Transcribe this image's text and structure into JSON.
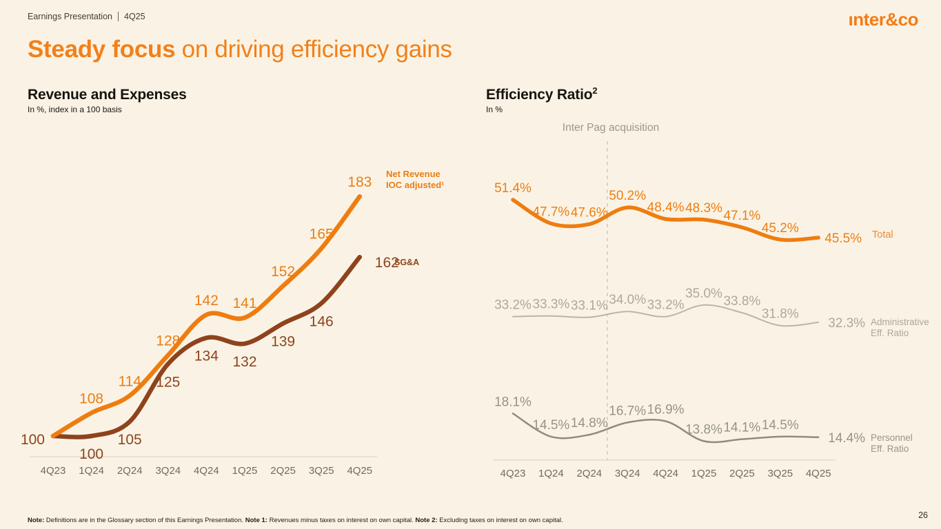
{
  "page": {
    "header": {
      "label": "Earnings Presentation",
      "quarter": "4Q25"
    },
    "logo_text": "ınter&co",
    "title": {
      "emphasis": "Steady focus",
      "rest": " on driving efficiency gains"
    },
    "page_number": "26",
    "footnote": [
      {
        "bold": "Note:",
        "text": " Definitions are in the Glossary section of this Earnings Presentation. "
      },
      {
        "bold": "Note 1:",
        "text": " Revenues minus taxes on interest on own capital. "
      },
      {
        "bold": "Note 2:",
        "text": " Excluding taxes on interest on own capital."
      }
    ],
    "colors": {
      "background": "#FAF3E5",
      "accent_orange": "#EE7D11",
      "brown": "#8E431D",
      "admin_gray": "#BAB5A9",
      "personnel_gray": "#8E8B81"
    }
  },
  "chart_data": [
    {
      "type": "line",
      "title": "Revenue and Expenses",
      "title_sup": "",
      "subtitle": "In %, index in a 100 basis",
      "categories": [
        "4Q23",
        "1Q24",
        "2Q24",
        "3Q24",
        "4Q24",
        "1Q25",
        "2Q25",
        "3Q25",
        "4Q25"
      ],
      "series": [
        {
          "name": "Net Revenue IOC adjusted¹",
          "legend_lines": [
            "Net Revenue",
            "IOC adjusted¹"
          ],
          "color": "#EE7D11",
          "label_color": "#E87E16",
          "values": [
            100,
            108,
            114,
            128,
            142,
            141,
            152,
            165,
            183
          ]
        },
        {
          "name": "SG&A",
          "legend_lines": [
            "SG&A"
          ],
          "color": "#8E431D",
          "label_color": "#8E431D",
          "values": [
            100,
            100,
            105,
            125,
            134,
            132,
            139,
            146,
            162
          ]
        }
      ],
      "ylim": [
        95,
        195
      ],
      "value_format": "integer",
      "grid": false,
      "legend_position": "right-of-line-end"
    },
    {
      "type": "line",
      "title": "Efficiency Ratio",
      "title_sup": "2",
      "subtitle": "In %",
      "annotation": "Inter Pag acquisition",
      "categories": [
        "4Q23",
        "1Q24",
        "2Q24",
        "3Q24",
        "4Q24",
        "1Q25",
        "2Q25",
        "3Q25",
        "4Q25"
      ],
      "series": [
        {
          "name": "Total",
          "legend_lines": [
            "Total"
          ],
          "color": "#EE7D11",
          "label_color": "#EE7D11",
          "values": [
            51.4,
            47.7,
            47.6,
            50.2,
            48.4,
            48.3,
            47.1,
            45.2,
            45.5
          ]
        },
        {
          "name": "Administrative Eff. Ratio",
          "legend_lines": [
            "Administrative",
            "Eff. Ratio"
          ],
          "color": "#BAB5A9",
          "label_color": "#ADA89B",
          "values": [
            33.2,
            33.3,
            33.1,
            34.0,
            33.2,
            35.0,
            33.8,
            31.8,
            32.3
          ]
        },
        {
          "name": "Personnel Eff. Ratio",
          "legend_lines": [
            "Personnel",
            "Eff. Ratio"
          ],
          "color": "#8E8B81",
          "label_color": "#96938A",
          "values": [
            18.1,
            14.5,
            14.8,
            16.7,
            16.9,
            13.8,
            14.1,
            14.5,
            14.4
          ]
        }
      ],
      "ylim": [
        10,
        55
      ],
      "value_format": "percent1",
      "grid": false,
      "legend_position": "right-of-line-end"
    }
  ]
}
